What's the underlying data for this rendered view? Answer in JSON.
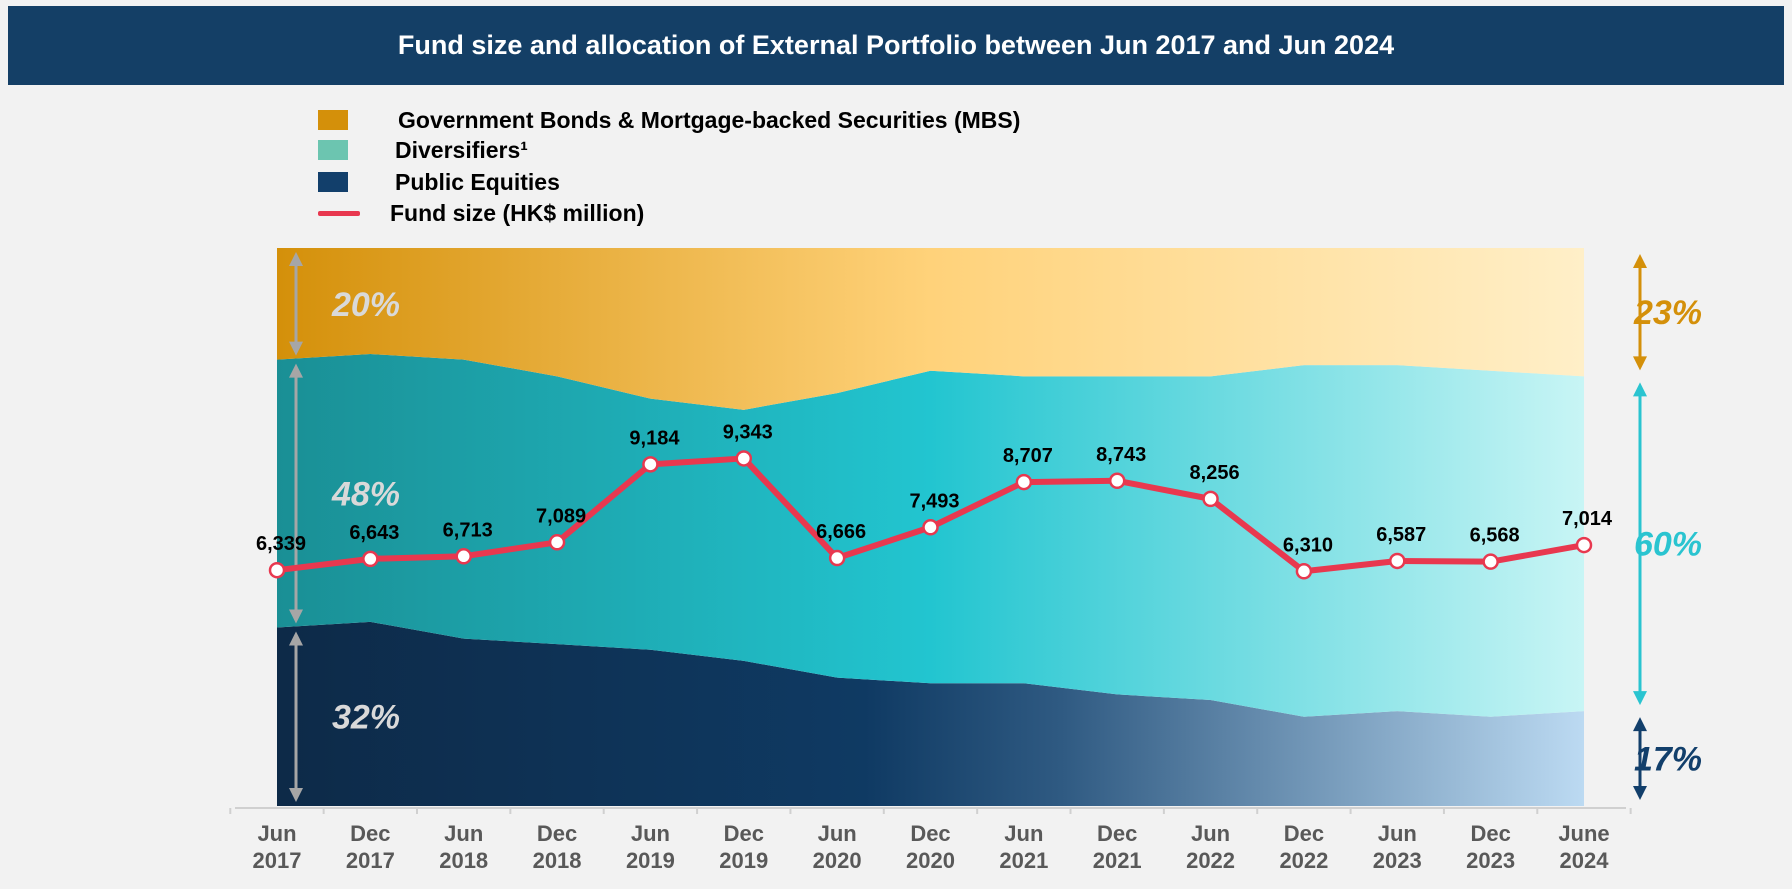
{
  "chart_data": {
    "type": "stacked_area_line",
    "title": "Fund size and allocation of External Portfolio between Jun 2017 and Jun 2024",
    "categories": [
      "Jun 2017",
      "Dec 2017",
      "Jun 2018",
      "Dec 2018",
      "Jun 2019",
      "Dec 2019",
      "Jun 2020",
      "Dec 2020",
      "Jun 2021",
      "Dec 2021",
      "Jun 2022",
      "Dec 2022",
      "Jun 2023",
      "Dec 2023",
      "June 2024"
    ],
    "ylim": [
      0,
      100
    ],
    "y2lim": [
      0,
      15000
    ],
    "series": [
      {
        "name": "Public Equities",
        "color": "#123f6b",
        "label_color": "#123f6b",
        "start_label": "32%",
        "end_label": "17%",
        "values": [
          32,
          33,
          30,
          29,
          28,
          26,
          23,
          22,
          22,
          20,
          19,
          16,
          17,
          16,
          17
        ]
      },
      {
        "name": "Diversifiers¹",
        "color": "#6cc5b0",
        "label_color": "#2ac4d0",
        "start_label": "48%",
        "end_label": "60%",
        "values": [
          48,
          48,
          50,
          48,
          45,
          45,
          51,
          56,
          55,
          57,
          58,
          63,
          62,
          62,
          60
        ]
      },
      {
        "name": "Government Bonds & Mortgage-backed Securities (MBS)",
        "color": "#d4900a",
        "label_color": "#d4900a",
        "start_label": "20%",
        "end_label": "23%",
        "values": [
          20,
          19,
          20,
          23,
          27,
          29,
          26,
          22,
          23,
          23,
          23,
          21,
          21,
          22,
          23
        ]
      },
      {
        "name": "Fund size (HK$ million)",
        "color": "#e8384f",
        "axis": "y2",
        "values": [
          6339,
          6643,
          6713,
          7089,
          9184,
          9343,
          6666,
          7493,
          8707,
          8743,
          8256,
          6310,
          6587,
          6568,
          7014
        ],
        "value_labels": [
          "6,339",
          "6,643",
          "6,713",
          "7,089",
          "9,184",
          "9,343",
          "6,666",
          "7,493",
          "8,707",
          "8,743",
          "8,256",
          "6,310",
          "6,587",
          "6,568",
          "7,014"
        ]
      }
    ]
  }
}
